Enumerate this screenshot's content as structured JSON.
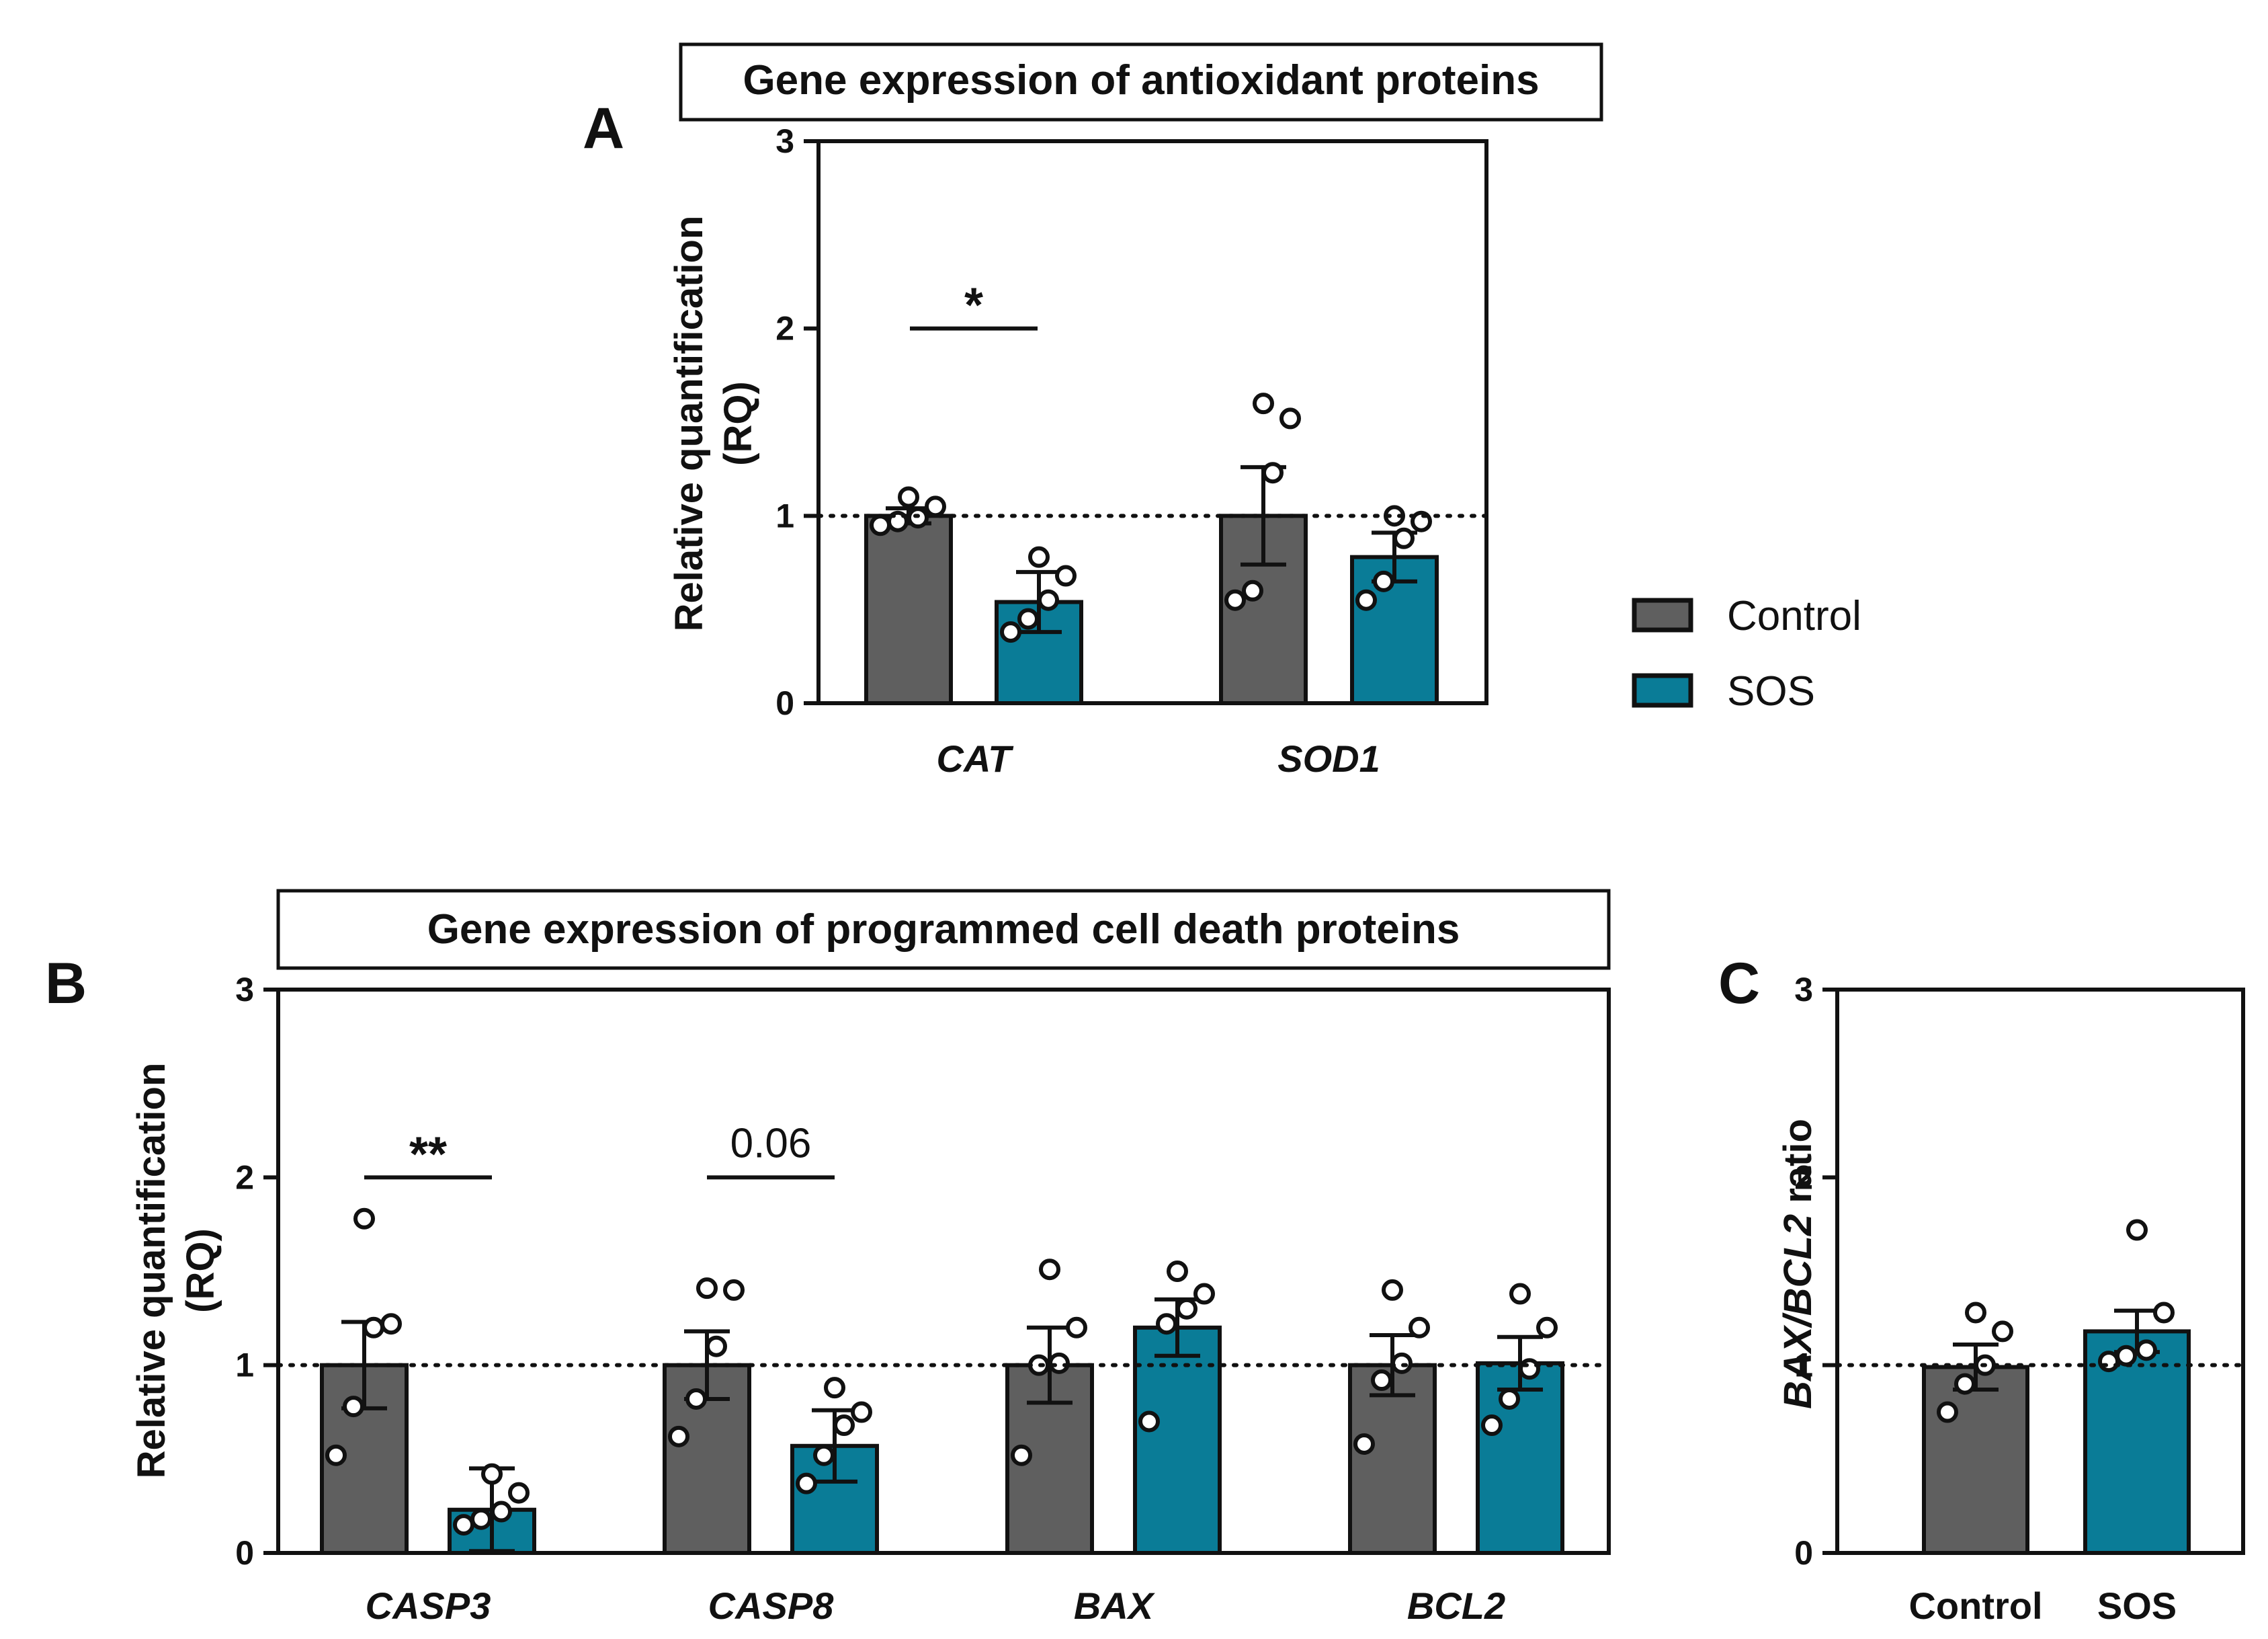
{
  "legend": [
    {
      "label": "Control",
      "color": "#5f5f5f"
    },
    {
      "label": "SOS",
      "color": "#0a7c97"
    }
  ],
  "colors": {
    "control": "#5f5f5f",
    "sos": "#0a7c97",
    "axis": "#111111"
  },
  "chart_data": [
    {
      "panel": "A",
      "type": "bar",
      "title": "Gene expression of antioxidant proteins",
      "ylabel_line1": "Relative quantification",
      "ylabel_line2": "(RQ)",
      "ylim": [
        0,
        3
      ],
      "yticks": [
        "0",
        "1",
        "2",
        "3"
      ],
      "reference_line": 1,
      "categories": [
        "CAT",
        "SOD1"
      ],
      "series": [
        {
          "name": "Control",
          "values": [
            1.0,
            1.0
          ],
          "errors": [
            0.04,
            0.26
          ],
          "points": [
            [
              0.95,
              0.97,
              0.99,
              1.05,
              1.1
            ],
            [
              0.55,
              0.6,
              1.23,
              1.52,
              1.6
            ]
          ]
        },
        {
          "name": "SOS",
          "values": [
            0.54,
            0.78
          ],
          "errors": [
            0.16,
            0.13
          ],
          "points": [
            [
              0.38,
              0.45,
              0.55,
              0.68,
              0.78
            ],
            [
              0.55,
              0.65,
              0.88,
              0.97,
              1.0
            ]
          ]
        }
      ],
      "significance": [
        {
          "category": "CAT",
          "label": "*",
          "y": 2.0
        }
      ]
    },
    {
      "panel": "B",
      "type": "bar",
      "title": "Gene expression of programmed cell death proteins",
      "ylabel_line1": "Relative quantification",
      "ylabel_line2": "(RQ)",
      "ylim": [
        0,
        3
      ],
      "yticks": [
        "0",
        "1",
        "2",
        "3"
      ],
      "reference_line": 1,
      "categories": [
        "CASP3",
        "CASP8",
        "BAX",
        "BCL2"
      ],
      "series": [
        {
          "name": "Control",
          "values": [
            1.0,
            1.0,
            1.0,
            1.0
          ],
          "errors": [
            0.23,
            0.18,
            0.2,
            0.16
          ],
          "points": [
            [
              0.52,
              0.78,
              1.2,
              1.22,
              1.78
            ],
            [
              0.62,
              0.82,
              1.1,
              1.4,
              1.41
            ],
            [
              0.52,
              1.0,
              1.01,
              1.2,
              1.51
            ],
            [
              0.58,
              0.92,
              1.01,
              1.2,
              1.4
            ]
          ]
        },
        {
          "name": "SOS",
          "values": [
            0.23,
            0.57,
            1.2,
            1.01
          ],
          "errors": [
            0.22,
            0.19,
            0.15,
            0.14
          ],
          "points": [
            [
              0.15,
              0.18,
              0.22,
              0.32,
              0.42
            ],
            [
              0.37,
              0.52,
              0.68,
              0.75,
              0.88
            ],
            [
              0.7,
              1.22,
              1.3,
              1.38,
              1.5
            ],
            [
              0.68,
              0.82,
              0.98,
              1.2,
              1.38
            ]
          ]
        }
      ],
      "significance": [
        {
          "category": "CASP3",
          "label": "**",
          "y": 2.0
        },
        {
          "category": "CASP8",
          "label": "0.06",
          "y": 2.0
        }
      ]
    },
    {
      "panel": "C",
      "type": "bar",
      "ylabel_italic_part": "BAX/BCL2",
      "ylabel_plain_part": " ratio",
      "ylim": [
        0,
        3
      ],
      "yticks": [
        "0",
        "1",
        "2",
        "3"
      ],
      "reference_line": 1,
      "categories": [
        "Control",
        "SOS"
      ],
      "values": [
        0.99,
        1.18
      ],
      "errors": [
        0.12,
        0.11
      ],
      "points": [
        [
          0.75,
          0.9,
          1.0,
          1.18,
          1.28
        ],
        [
          1.02,
          1.05,
          1.08,
          1.28,
          1.72
        ]
      ]
    }
  ]
}
